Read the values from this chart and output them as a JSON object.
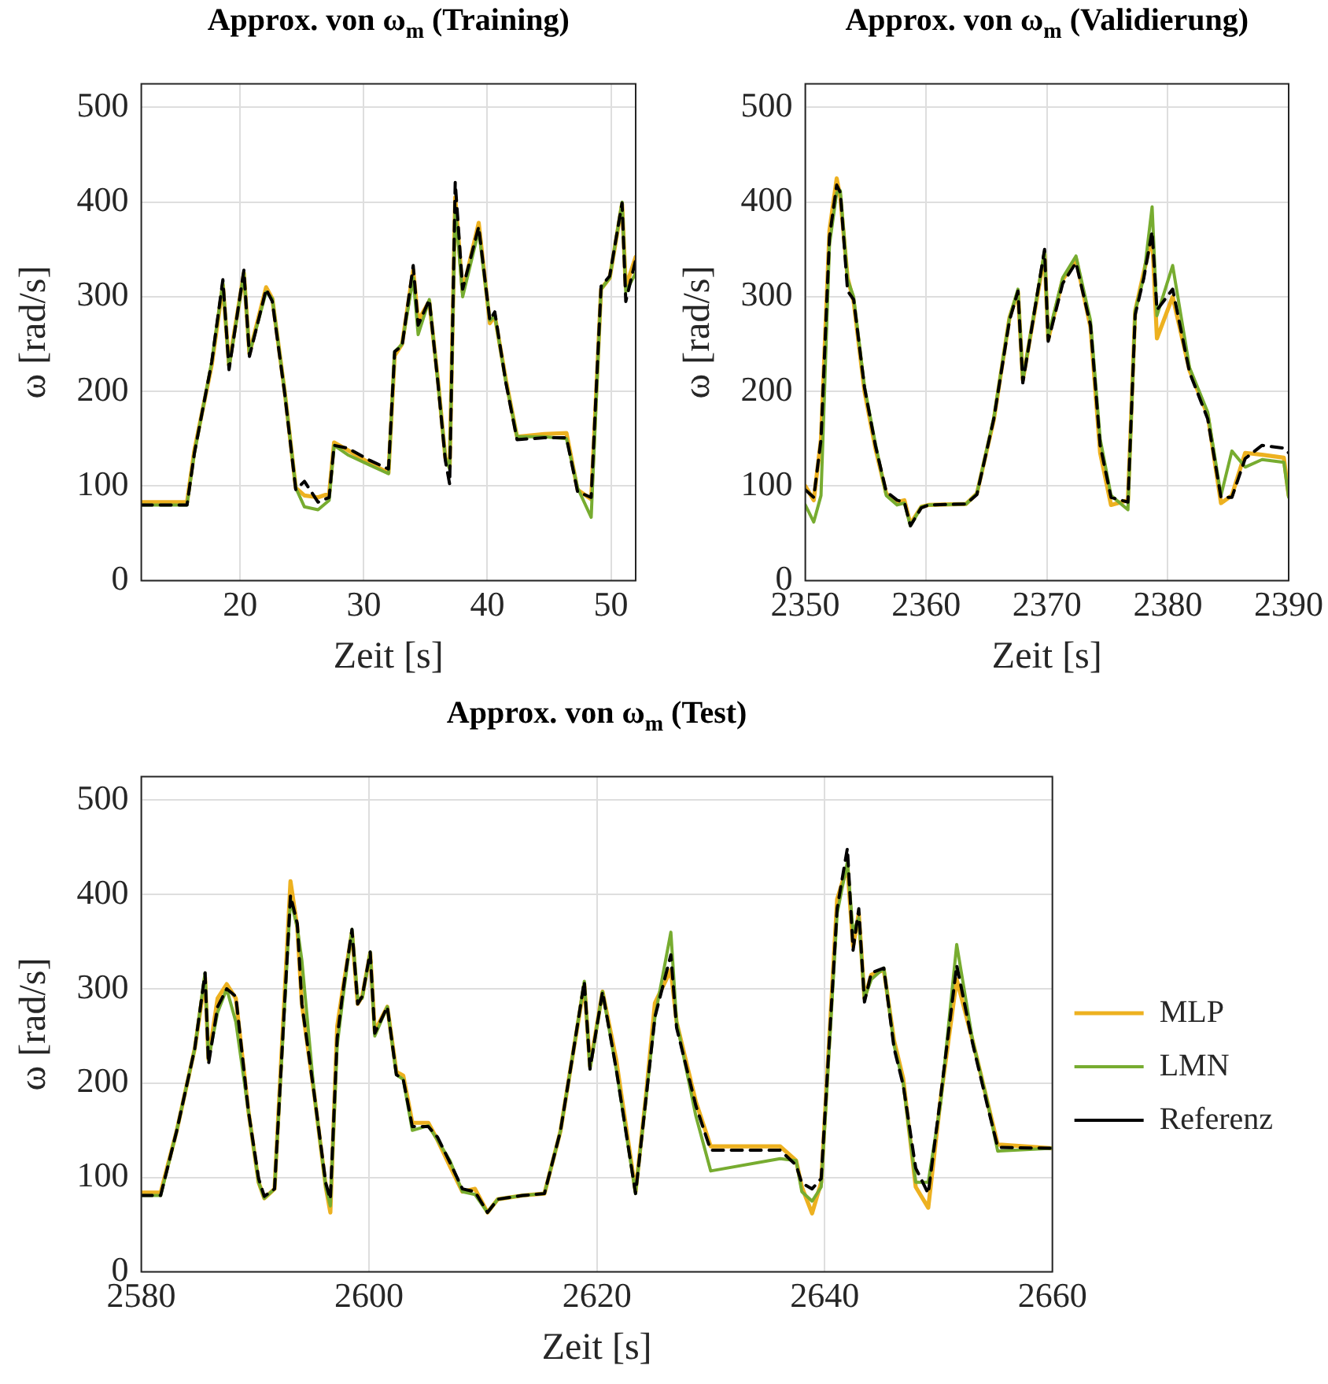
{
  "chart_data": [
    {
      "type": "line",
      "title": "Approx. von ω$_{m}$ (Training)",
      "xlabel": "Zeit [s]",
      "ylabel": "ω [rad/s]",
      "xlim": [
        12,
        52
      ],
      "xticks": [
        20,
        30,
        40,
        50
      ],
      "ylim": [
        0,
        525
      ],
      "yticks": [
        0,
        100,
        200,
        300,
        400,
        500
      ],
      "grid": true,
      "marker": "none",
      "x": [
        12,
        15.7,
        16.3,
        17.7,
        18.6,
        19.1,
        20.3,
        20.75,
        22.1,
        22.6,
        23.6,
        24.5,
        25.2,
        26.3,
        27.2,
        27.6,
        28.7,
        30.5,
        32,
        32.5,
        33.1,
        34,
        34.4,
        35.3,
        36,
        36.6,
        36.95,
        37.4,
        38,
        39.3,
        40.2,
        40.6,
        41.5,
        42.4,
        44.6,
        46.4,
        47.3,
        48.4,
        49.2,
        49.9,
        50.9,
        51.2,
        52
      ],
      "series": [
        {
          "color": "#edb120",
          "values": [
            83,
            83,
            138,
            228,
            312,
            228,
            325,
            240,
            310,
            298,
            200,
            98,
            90,
            88,
            92,
            146,
            138,
            124,
            114,
            238,
            250,
            328,
            275,
            295,
            212,
            130,
            120,
            405,
            305,
            378,
            272,
            280,
            212,
            152,
            155,
            156,
            96,
            86,
            308,
            320,
            398,
            310,
            342
          ]
        },
        {
          "color": "#77ac30",
          "values": [
            80,
            80,
            135,
            231,
            315,
            225,
            325,
            240,
            305,
            298,
            200,
            98,
            78,
            75,
            85,
            143,
            133,
            122,
            113,
            242,
            250,
            320,
            260,
            297,
            210,
            130,
            118,
            395,
            300,
            370,
            275,
            280,
            210,
            152,
            152,
            150,
            98,
            67,
            308,
            320,
            400,
            305,
            325
          ]
        },
        {
          "color": "#000000",
          "line_style": "dashed",
          "values": [
            80,
            80,
            135,
            231,
            318,
            223,
            328,
            237,
            308,
            295,
            198,
            96,
            105,
            83,
            88,
            143,
            140,
            127,
            118,
            242,
            248,
            333,
            270,
            297,
            209,
            127,
            102,
            421,
            308,
            374,
            275,
            284,
            209,
            149,
            151,
            151,
            94,
            88,
            311,
            322,
            399,
            295,
            339
          ]
        }
      ]
    },
    {
      "type": "line",
      "title": "Approx. von ω$_{m}$ (Validierung)",
      "xlabel": "Zeit [s]",
      "ylabel": "ω [rad/s]",
      "xlim": [
        2350,
        2390
      ],
      "xticks": [
        2350,
        2360,
        2370,
        2380,
        2390
      ],
      "ylim": [
        0,
        525
      ],
      "yticks": [
        0,
        100,
        200,
        300,
        400,
        500
      ],
      "grid": true,
      "marker": "none",
      "x": [
        2350,
        2350.7,
        2351.3,
        2352,
        2352.6,
        2352.9,
        2353.5,
        2354,
        2354.9,
        2355.8,
        2356.7,
        2357.6,
        2358.2,
        2358.7,
        2359.6,
        2360.2,
        2363.3,
        2364.2,
        2365.6,
        2366.9,
        2367.6,
        2368,
        2369.8,
        2370.1,
        2371.3,
        2372.4,
        2373.6,
        2374.4,
        2375.3,
        2376.7,
        2377.3,
        2378,
        2378.7,
        2379.1,
        2380.4,
        2381.8,
        2383.3,
        2384.4,
        2385.3,
        2386.4,
        2387.8,
        2389.6,
        2390
      ],
      "series": [
        {
          "color": "#edb120",
          "values": [
            100,
            85,
            150,
            370,
            425,
            405,
            320,
            295,
            200,
            140,
            92,
            83,
            85,
            60,
            78,
            80,
            81,
            92,
            170,
            278,
            305,
            212,
            345,
            255,
            318,
            340,
            268,
            135,
            80,
            85,
            285,
            325,
            365,
            256,
            300,
            222,
            175,
            82,
            90,
            135,
            133,
            130,
            90
          ]
        },
        {
          "color": "#77ac30",
          "values": [
            80,
            62,
            90,
            355,
            410,
            412,
            318,
            300,
            205,
            145,
            90,
            80,
            82,
            58,
            78,
            80,
            81,
            92,
            172,
            278,
            308,
            212,
            348,
            258,
            320,
            343,
            275,
            150,
            90,
            75,
            285,
            320,
            395,
            280,
            333,
            225,
            178,
            90,
            137,
            120,
            128,
            125,
            88
          ]
        },
        {
          "color": "#000000",
          "line_style": "dashed",
          "values": [
            96,
            88,
            149,
            363,
            418,
            410,
            306,
            297,
            204,
            143,
            94,
            85,
            83,
            58,
            77,
            80,
            81,
            91,
            171,
            275,
            306,
            209,
            350,
            253,
            314,
            336,
            270,
            143,
            88,
            83,
            281,
            319,
            369,
            286,
            308,
            220,
            171,
            88,
            88,
            129,
            143,
            140,
            135
          ]
        }
      ]
    },
    {
      "type": "line",
      "title": "Approx. von ω$_{m}$ (Test)",
      "xlabel": "Zeit [s]",
      "ylabel": "ω [rad/s]",
      "xlim": [
        2580,
        2660
      ],
      "xticks": [
        2580,
        2600,
        2620,
        2640,
        2660
      ],
      "ylim": [
        0,
        525
      ],
      "yticks": [
        0,
        100,
        200,
        300,
        400,
        500
      ],
      "grid": true,
      "marker": "none",
      "legend": "right",
      "x": [
        2580,
        2581.7,
        2583.1,
        2584.7,
        2585.6,
        2585.9,
        2586.7,
        2587.5,
        2588.3,
        2589.4,
        2590.3,
        2590.8,
        2591.7,
        2593.1,
        2593.7,
        2594.1,
        2595.2,
        2596.2,
        2596.6,
        2597.2,
        2597.7,
        2598.5,
        2599,
        2599.4,
        2600.1,
        2600.5,
        2601.6,
        2602.4,
        2603,
        2603.8,
        2605.2,
        2606,
        2607.1,
        2608.2,
        2609.3,
        2610.4,
        2611.3,
        2613.5,
        2615.4,
        2616.8,
        2617.9,
        2618.9,
        2619.4,
        2620.5,
        2621.7,
        2623.4,
        2624.3,
        2625.1,
        2626.5,
        2627,
        2628.7,
        2630,
        2636.1,
        2637.5,
        2638,
        2638.9,
        2639.7,
        2641.1,
        2642,
        2642.5,
        2643,
        2643.5,
        2644.1,
        2645.2,
        2646.1,
        2646.9,
        2648,
        2649.1,
        2650.2,
        2651.6,
        2653,
        2654.3,
        2655.2,
        2660
      ],
      "series": [
        {
          "name": "MLP",
          "color": "#edb120",
          "values": [
            84,
            84,
            149,
            237,
            312,
            225,
            290,
            305,
            290,
            171,
            95,
            78,
            88,
            414,
            365,
            284,
            187,
            90,
            63,
            260,
            300,
            360,
            284,
            292,
            338,
            255,
            281,
            212,
            208,
            158,
            158,
            140,
            112,
            85,
            88,
            63,
            77,
            81,
            83,
            149,
            231,
            305,
            218,
            297,
            225,
            85,
            185,
            285,
            320,
            265,
            180,
            133,
            133,
            118,
            90,
            62,
            95,
            395,
            430,
            345,
            380,
            290,
            315,
            320,
            245,
            205,
            90,
            68,
            185,
            310,
            245,
            180,
            135,
            131
          ]
        },
        {
          "name": "LMN",
          "color": "#77ac30",
          "values": [
            81,
            81,
            149,
            237,
            317,
            225,
            275,
            300,
            265,
            171,
            95,
            78,
            88,
            395,
            365,
            330,
            187,
            90,
            70,
            240,
            290,
            363,
            290,
            290,
            339,
            250,
            281,
            209,
            204,
            150,
            155,
            140,
            118,
            85,
            82,
            63,
            77,
            81,
            83,
            149,
            231,
            308,
            215,
            297,
            215,
            83,
            182,
            270,
            360,
            265,
            165,
            107,
            120,
            118,
            85,
            75,
            90,
            380,
            435,
            360,
            375,
            290,
            310,
            322,
            240,
            200,
            95,
            95,
            180,
            347,
            245,
            180,
            128,
            131
          ]
        },
        {
          "name": "Referenz",
          "color": "#000000",
          "line_style": "dashed",
          "values": [
            81,
            81,
            149,
            237,
            317,
            220,
            281,
            300,
            292,
            171,
            99,
            80,
            88,
            399,
            369,
            284,
            187,
            94,
            77,
            248,
            297,
            363,
            284,
            292,
            339,
            253,
            281,
            209,
            204,
            154,
            154,
            143,
            116,
            88,
            85,
            63,
            77,
            81,
            83,
            149,
            231,
            308,
            215,
            297,
            215,
            83,
            182,
            270,
            336,
            259,
            176,
            129,
            129,
            113,
            94,
            88,
            99,
            385,
            449,
            341,
            385,
            286,
            317,
            322,
            237,
            198,
            110,
            83,
            187,
            325,
            242,
            176,
            132,
            131
          ]
        }
      ]
    }
  ]
}
